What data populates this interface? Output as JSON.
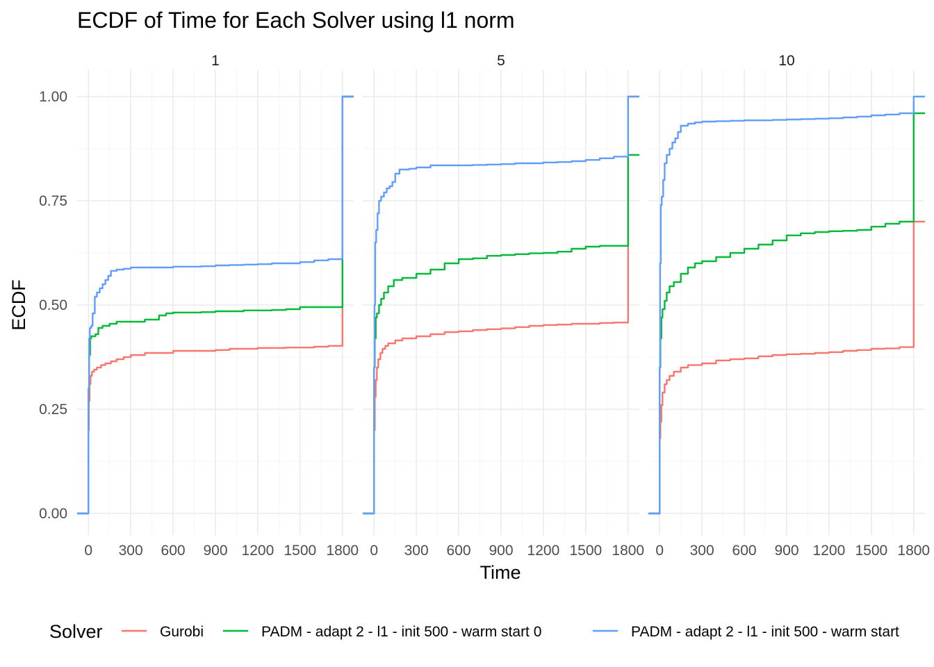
{
  "chart_data": {
    "type": "line",
    "title": "ECDF of Time for Each Solver using l1 norm",
    "xlabel": "Time",
    "ylabel": "ECDF",
    "xlim": [
      -80,
      1880
    ],
    "ylim": [
      0,
      1
    ],
    "x_ticks": [
      "0",
      "300",
      "600",
      "900",
      "1200",
      "1500",
      "1800"
    ],
    "x_tick_values": [
      0,
      300,
      600,
      900,
      1200,
      1500,
      1800
    ],
    "y_ticks": [
      "0.00",
      "0.25",
      "0.50",
      "0.75",
      "1.00"
    ],
    "y_tick_values": [
      0,
      0.25,
      0.5,
      0.75,
      1.0
    ],
    "grid": true,
    "legend": {
      "title": "Solver",
      "position": "bottom",
      "entries": [
        {
          "name": "Gurobi",
          "color": "#F8766D"
        },
        {
          "name": "PADM - adapt 2 - l1 - init 500 - warm start 0",
          "color": "#00BA38"
        },
        {
          "name": "PADM - adapt 2 - l1 - init 500 - warm start",
          "color": "#619CFF"
        }
      ]
    },
    "panels": [
      {
        "label": "1",
        "series": [
          {
            "name": "Gurobi",
            "color": "#F8766D",
            "x": [
              -80,
              0,
              0,
              3,
              8,
              15,
              25,
              40,
              60,
              90,
              120,
              160,
              200,
              250,
              300,
              400,
              500,
              600,
              700,
              800,
              900,
              1000,
              1100,
              1200,
              1300,
              1400,
              1500,
              1600,
              1700,
              1800,
              1800,
              1880
            ],
            "y": [
              0,
              0,
              0.2,
              0.27,
              0.31,
              0.33,
              0.34,
              0.345,
              0.35,
              0.356,
              0.36,
              0.365,
              0.37,
              0.375,
              0.38,
              0.385,
              0.385,
              0.39,
              0.39,
              0.39,
              0.392,
              0.395,
              0.395,
              0.397,
              0.397,
              0.398,
              0.398,
              0.4,
              0.402,
              0.402,
              1.0,
              1.0
            ]
          },
          {
            "name": "PADM - adapt 2 - l1 - init 500 - warm start 0",
            "color": "#00BA38",
            "x": [
              -80,
              0,
              0,
              5,
              12,
              20,
              30,
              50,
              70,
              100,
              150,
              200,
              300,
              400,
              500,
              550,
              600,
              700,
              800,
              900,
              1000,
              1100,
              1200,
              1300,
              1400,
              1500,
              1600,
              1700,
              1800,
              1800,
              1880
            ],
            "y": [
              0,
              0,
              0.3,
              0.38,
              0.42,
              0.425,
              0.425,
              0.43,
              0.445,
              0.45,
              0.455,
              0.46,
              0.46,
              0.465,
              0.475,
              0.48,
              0.482,
              0.482,
              0.483,
              0.485,
              0.485,
              0.487,
              0.487,
              0.488,
              0.49,
              0.495,
              0.495,
              0.495,
              0.495,
              1.0,
              1.0
            ]
          },
          {
            "name": "PADM - adapt 2 - l1 - init 500 - warm start",
            "color": "#619CFF",
            "x": [
              -80,
              0,
              0,
              5,
              10,
              20,
              30,
              45,
              60,
              80,
              100,
              120,
              140,
              160,
              200,
              250,
              300,
              400,
              500,
              600,
              700,
              800,
              900,
              1000,
              1100,
              1200,
              1300,
              1400,
              1500,
              1600,
              1700,
              1800,
              1800,
              1880
            ],
            "y": [
              0,
              0,
              0.3,
              0.42,
              0.445,
              0.45,
              0.48,
              0.52,
              0.53,
              0.54,
              0.55,
              0.56,
              0.57,
              0.582,
              0.585,
              0.587,
              0.59,
              0.59,
              0.59,
              0.592,
              0.592,
              0.593,
              0.595,
              0.596,
              0.597,
              0.598,
              0.6,
              0.6,
              0.603,
              0.607,
              0.61,
              0.612,
              1.0,
              1.0
            ]
          }
        ]
      },
      {
        "label": "5",
        "series": [
          {
            "name": "Gurobi",
            "color": "#F8766D",
            "x": [
              -80,
              0,
              0,
              5,
              12,
              20,
              30,
              45,
              60,
              80,
              100,
              150,
              200,
              300,
              400,
              500,
              600,
              700,
              800,
              900,
              1000,
              1100,
              1200,
              1300,
              1400,
              1500,
              1600,
              1700,
              1800,
              1800,
              1880
            ],
            "y": [
              0,
              0,
              0.2,
              0.28,
              0.32,
              0.35,
              0.37,
              0.385,
              0.395,
              0.402,
              0.408,
              0.415,
              0.42,
              0.425,
              0.43,
              0.435,
              0.437,
              0.44,
              0.442,
              0.444,
              0.447,
              0.45,
              0.452,
              0.453,
              0.455,
              0.455,
              0.457,
              0.458,
              0.458,
              1.0,
              1.0
            ]
          },
          {
            "name": "PADM - adapt 2 - l1 - init 500 - warm start 0",
            "color": "#00BA38",
            "x": [
              -80,
              0,
              0,
              5,
              12,
              20,
              35,
              50,
              70,
              100,
              140,
              200,
              300,
              400,
              500,
              600,
              700,
              800,
              900,
              1000,
              1100,
              1200,
              1300,
              1400,
              1500,
              1600,
              1700,
              1800,
              1800,
              1880
            ],
            "y": [
              0,
              0,
              0.35,
              0.42,
              0.47,
              0.48,
              0.5,
              0.515,
              0.53,
              0.545,
              0.56,
              0.565,
              0.575,
              0.585,
              0.6,
              0.61,
              0.612,
              0.618,
              0.62,
              0.622,
              0.624,
              0.625,
              0.628,
              0.635,
              0.64,
              0.642,
              0.642,
              0.642,
              0.86,
              0.86
            ]
          },
          {
            "name": "PADM - adapt 2 - l1 - init 500 - warm start",
            "color": "#619CFF",
            "x": [
              -80,
              0,
              0,
              3,
              8,
              15,
              25,
              35,
              50,
              70,
              90,
              110,
              130,
              150,
              180,
              250,
              300,
              400,
              500,
              600,
              700,
              800,
              900,
              1000,
              1100,
              1200,
              1300,
              1400,
              1500,
              1600,
              1700,
              1800,
              1800,
              1880
            ],
            "y": [
              0,
              0,
              0.35,
              0.5,
              0.65,
              0.68,
              0.72,
              0.75,
              0.76,
              0.77,
              0.78,
              0.785,
              0.795,
              0.815,
              0.825,
              0.827,
              0.83,
              0.835,
              0.835,
              0.835,
              0.836,
              0.837,
              0.838,
              0.84,
              0.84,
              0.842,
              0.843,
              0.845,
              0.848,
              0.852,
              0.856,
              0.858,
              1.0,
              1.0
            ]
          }
        ]
      },
      {
        "label": "10",
        "series": [
          {
            "name": "Gurobi",
            "color": "#F8766D",
            "x": [
              -80,
              0,
              0,
              5,
              12,
              20,
              35,
              50,
              70,
              100,
              150,
              200,
              300,
              400,
              500,
              600,
              700,
              800,
              900,
              1000,
              1100,
              1200,
              1300,
              1400,
              1500,
              1600,
              1700,
              1800,
              1800,
              1880
            ],
            "y": [
              0,
              0,
              0.18,
              0.22,
              0.26,
              0.29,
              0.31,
              0.32,
              0.33,
              0.34,
              0.35,
              0.356,
              0.36,
              0.367,
              0.37,
              0.372,
              0.377,
              0.38,
              0.382,
              0.383,
              0.385,
              0.387,
              0.39,
              0.392,
              0.395,
              0.396,
              0.399,
              0.4,
              0.7,
              0.7
            ]
          },
          {
            "name": "PADM - adapt 2 - l1 - init 500 - warm start 0",
            "color": "#00BA38",
            "x": [
              -80,
              0,
              0,
              5,
              12,
              20,
              35,
              50,
              70,
              100,
              150,
              200,
              250,
              300,
              400,
              500,
              600,
              700,
              800,
              900,
              1000,
              1100,
              1200,
              1300,
              1400,
              1500,
              1600,
              1700,
              1800,
              1800,
              1880
            ],
            "y": [
              0,
              0,
              0.35,
              0.42,
              0.47,
              0.49,
              0.51,
              0.53,
              0.545,
              0.555,
              0.575,
              0.59,
              0.6,
              0.605,
              0.615,
              0.625,
              0.635,
              0.645,
              0.655,
              0.667,
              0.672,
              0.675,
              0.677,
              0.678,
              0.68,
              0.688,
              0.695,
              0.7,
              0.702,
              0.96,
              0.96
            ]
          },
          {
            "name": "PADM - adapt 2 - l1 - init 500 - warm start",
            "color": "#619CFF",
            "x": [
              -80,
              0,
              0,
              3,
              8,
              15,
              25,
              35,
              50,
              70,
              90,
              110,
              130,
              150,
              200,
              250,
              300,
              400,
              500,
              600,
              700,
              800,
              900,
              1000,
              1100,
              1200,
              1300,
              1400,
              1500,
              1600,
              1700,
              1800,
              1800,
              1880
            ],
            "y": [
              0,
              0,
              0.35,
              0.6,
              0.74,
              0.76,
              0.8,
              0.84,
              0.86,
              0.875,
              0.89,
              0.9,
              0.915,
              0.93,
              0.935,
              0.938,
              0.94,
              0.941,
              0.942,
              0.943,
              0.943,
              0.944,
              0.945,
              0.946,
              0.947,
              0.948,
              0.95,
              0.952,
              0.955,
              0.957,
              0.96,
              0.962,
              1.0,
              1.0
            ]
          }
        ]
      }
    ]
  }
}
